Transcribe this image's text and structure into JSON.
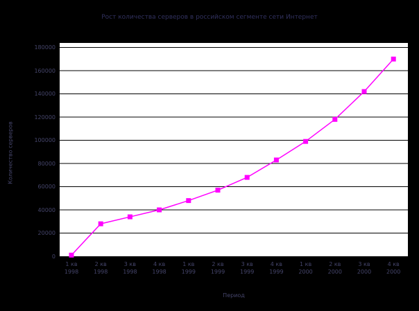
{
  "chart_data": {
    "type": "line",
    "title": "Рост количества серверов в российском сегменте сети Интернет",
    "xlabel": "Период",
    "ylabel": "Количество серверов",
    "categories": [
      {
        "q": "1 кв",
        "year": "1998"
      },
      {
        "q": "2 кв",
        "year": "1998"
      },
      {
        "q": "3 кв",
        "year": "1998"
      },
      {
        "q": "4 кв",
        "year": "1998"
      },
      {
        "q": "1 кв",
        "year": "1999"
      },
      {
        "q": "2 кв",
        "year": "1999"
      },
      {
        "q": "3 кв",
        "year": "1999"
      },
      {
        "q": "4 кв",
        "year": "1999"
      },
      {
        "q": "1 кв",
        "year": "2000"
      },
      {
        "q": "2 кв",
        "year": "2000"
      },
      {
        "q": "3 кв",
        "year": "2000"
      },
      {
        "q": "4 кв",
        "year": "2000"
      }
    ],
    "values": [
      1000,
      28000,
      34000,
      40000,
      48000,
      57000,
      68000,
      83000,
      99000,
      118000,
      142000,
      170000
    ],
    "yticks": [
      0,
      20000,
      40000,
      60000,
      80000,
      100000,
      120000,
      140000,
      160000,
      180000
    ],
    "ylim": [
      0,
      184000
    ],
    "grid": "horizontal",
    "legend": "none",
    "marker": "square"
  },
  "colors": {
    "page_bg": "#000000",
    "plot_bg": "#ffffff",
    "series": "#ff00ff",
    "grid": "#000000",
    "title_text": "#31315e",
    "tick_text": "#45456b"
  }
}
